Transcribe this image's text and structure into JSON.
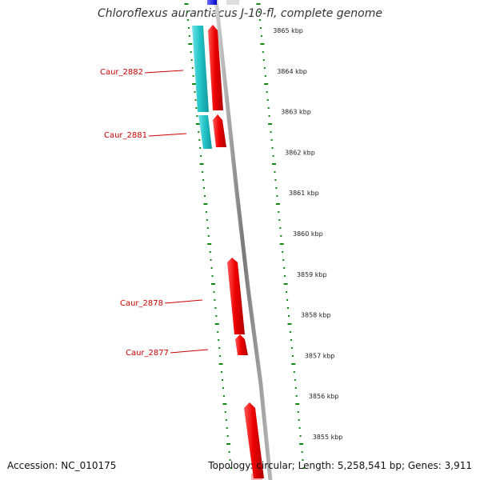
{
  "title": "Chloroflexus aurantiacus J-10-fl, complete genome",
  "footer": {
    "accession": "Accession: NC_010175",
    "summary": "Topology: circular; Length: 5,258,541 bp; Genes: 3,911"
  },
  "colors": {
    "forward_gene": "#ee0000",
    "reverse_gene": "#22c4c8",
    "backbone": "#888888",
    "ticks": "#118811",
    "label": "#cc0000",
    "top_marker": "#1a1aee"
  },
  "scale_labels": [
    {
      "label": "3865 kbp",
      "kbp": 3865
    },
    {
      "label": "3864 kbp",
      "kbp": 3864
    },
    {
      "label": "3863 kbp",
      "kbp": 3863
    },
    {
      "label": "3862 kbp",
      "kbp": 3862
    },
    {
      "label": "3861 kbp",
      "kbp": 3861
    },
    {
      "label": "3860 kbp",
      "kbp": 3860
    },
    {
      "label": "3859 kbp",
      "kbp": 3859
    },
    {
      "label": "3858 kbp",
      "kbp": 3858
    },
    {
      "label": "3857 kbp",
      "kbp": 3857
    },
    {
      "label": "3856 kbp",
      "kbp": 3856
    },
    {
      "label": "3855 kbp",
      "kbp": 3855
    }
  ],
  "genes": [
    {
      "name": "Caur_2882",
      "strand": "reverse",
      "labeled": true
    },
    {
      "name": "Caur_2881",
      "strand": "reverse",
      "labeled": true
    },
    {
      "name": "Caur_2878",
      "strand": "forward",
      "labeled": true
    },
    {
      "name": "Caur_2877",
      "strand": "forward",
      "labeled": true
    }
  ]
}
